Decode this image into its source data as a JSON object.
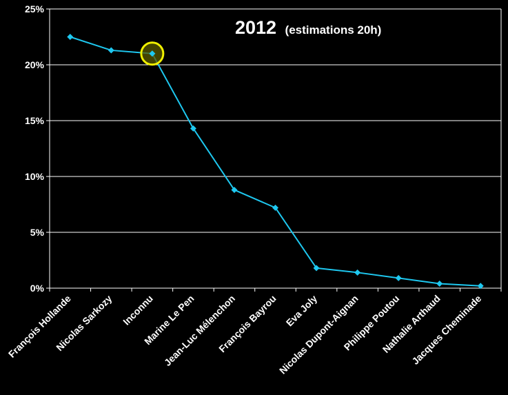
{
  "chart_data": {
    "type": "line",
    "title": "2012",
    "subtitle": "(estimations 20h)",
    "categories": [
      "François Hollande",
      "Nicolas Sarkozy",
      "Inconnu",
      "Marine Le Pen",
      "Jean-Luc Mélenchon",
      "François Bayrou",
      "Eva Joly",
      "Nicolas Dupont-Aignan",
      "Philippe Poutou",
      "Nathalie Arthaud",
      "Jacques Cheminade"
    ],
    "series": [
      {
        "values": [
          22.5,
          21.3,
          21.0,
          14.3,
          8.8,
          7.2,
          1.8,
          1.4,
          0.9,
          0.4,
          0.2
        ]
      }
    ],
    "ylim": [
      0,
      25
    ],
    "yticks": [
      "0%",
      "5%",
      "10%",
      "15%",
      "20%",
      "25%"
    ],
    "grid": true,
    "highlight_category": "Inconnu",
    "colors": {
      "line": "#1ec8f0",
      "marker": "#1ec8f0",
      "highlight_fill": "#5a5a00",
      "highlight_stroke": "#f0f000",
      "grid": "#ffffff",
      "background": "#000000"
    }
  }
}
